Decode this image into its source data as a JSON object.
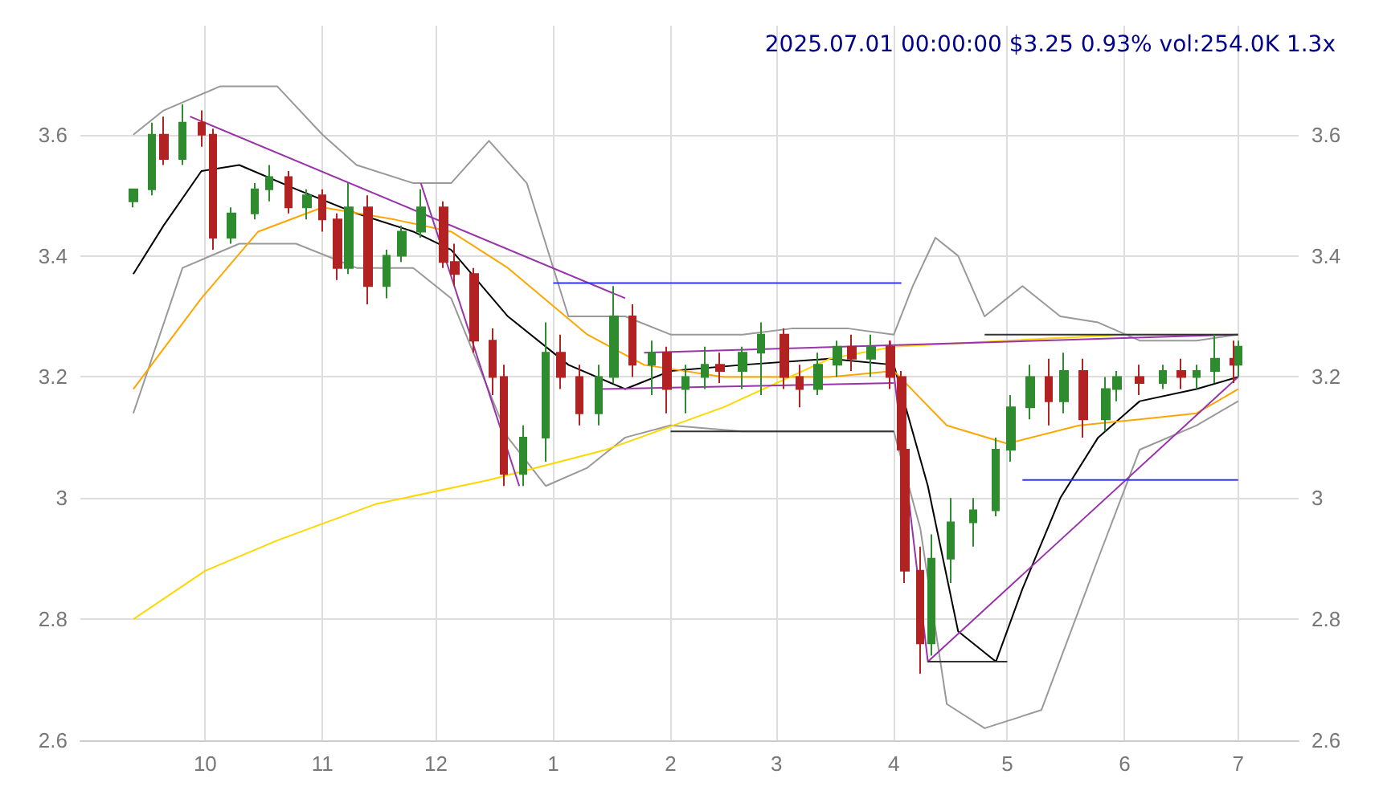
{
  "chart_data": {
    "type": "candlestick",
    "title": "2025.07.01 00:00:00 $3.25 0.93% vol:254.0K 1.3x",
    "xlim": [
      "2024-08-29",
      "2025-07-17"
    ],
    "xticks": [
      {
        "value": "2024-10-01",
        "label": "10"
      },
      {
        "value": "2024-11-01",
        "label": "11"
      },
      {
        "value": "2024-12-01",
        "label": "12"
      },
      {
        "value": "2025-01-01",
        "label": "1"
      },
      {
        "value": "2025-02-01",
        "label": "2"
      },
      {
        "value": "2025-03-01",
        "label": "3"
      },
      {
        "value": "2025-04-01",
        "label": "4"
      },
      {
        "value": "2025-05-01",
        "label": "5"
      },
      {
        "value": "2025-06-01",
        "label": "6"
      },
      {
        "value": "2025-07-01",
        "label": "7"
      }
    ],
    "ylim": [
      2.6,
      3.78
    ],
    "yticks": [
      2.6,
      2.8,
      3.0,
      3.2,
      3.4,
      3.6
    ],
    "y2lim": [
      2.6,
      3.78
    ],
    "y2ticks": [
      2.6,
      2.8,
      3.0,
      3.2,
      3.4,
      3.6
    ],
    "grid": true,
    "colors": [
      "#2e8b2e",
      "#2e8b2e",
      "#b22222",
      "#2e8b2e",
      "#b22222",
      "#b22222",
      "#2e8b2e",
      "#2e8b2e",
      "#2e8b2e",
      "#b22222",
      "#2e8b2e",
      "#b22222",
      "#b22222",
      "#2e8b2e",
      "#b22222",
      "#2e8b2e",
      "#2e8b2e",
      "#2e8b2e",
      "#b22222",
      "#b22222",
      "#b22222",
      "#b22222",
      "#b22222",
      "#2e8b2e",
      "#2e8b2e",
      "#b22222",
      "#b22222",
      "#2e8b2e",
      "#2e8b2e",
      "#b22222",
      "#2e8b2e",
      "#b22222",
      "#2e8b2e",
      "#2e8b2e",
      "#b22222",
      "#2e8b2e",
      "#2e8b2e",
      "#b22222",
      "#b22222",
      "#2e8b2e",
      "#2e8b2e",
      "#b22222",
      "#2e8b2e",
      "#b22222",
      "#b22222",
      "#b22222",
      "#b22222",
      "#2e8b2e",
      "#2e8b2e",
      "#2e8b2e",
      "#2e8b2e",
      "#2e8b2e",
      "#2e8b2e",
      "#b22222",
      "#2e8b2e",
      "#b22222",
      "#2e8b2e",
      "#2e8b2e",
      "#b22222",
      "#2e8b2e",
      "#b22222",
      "#2e8b2e",
      "#2e8b2e",
      "#b22222",
      "#2e8b2e"
    ],
    "x": [
      "2024-09-12",
      "2024-09-17",
      "2024-09-20",
      "2024-09-25",
      "2024-09-30",
      "2024-10-03",
      "2024-10-08",
      "2024-10-14",
      "2024-10-18",
      "2024-10-23",
      "2024-10-28",
      "2024-11-01",
      "2024-11-05",
      "2024-11-08",
      "2024-11-13",
      "2024-11-18",
      "2024-11-22",
      "2024-11-27",
      "2024-12-03",
      "2024-12-06",
      "2024-12-11",
      "2024-12-16",
      "2024-12-19",
      "2024-12-24",
      "2024-12-30",
      "2025-01-03",
      "2025-01-08",
      "2025-01-13",
      "2025-01-17",
      "2025-01-22",
      "2025-01-27",
      "2025-01-31",
      "2025-02-05",
      "2025-02-10",
      "2025-02-14",
      "2025-02-20",
      "2025-02-25",
      "2025-03-03",
      "2025-03-07",
      "2025-03-12",
      "2025-03-17",
      "2025-03-21",
      "2025-03-26",
      "2025-03-31",
      "2025-04-03",
      "2025-04-04",
      "2025-04-08",
      "2025-04-11",
      "2025-04-16",
      "2025-04-22",
      "2025-04-28",
      "2025-05-02",
      "2025-05-07",
      "2025-05-12",
      "2025-05-16",
      "2025-05-21",
      "2025-05-27",
      "2025-05-30",
      "2025-06-05",
      "2025-06-11",
      "2025-06-16",
      "2025-06-20",
      "2025-06-25",
      "2025-06-30",
      "2025-07-01"
    ],
    "ohlc": [
      [
        3.49,
        3.51,
        3.48,
        3.51
      ],
      [
        3.51,
        3.62,
        3.5,
        3.6
      ],
      [
        3.6,
        3.63,
        3.55,
        3.56
      ],
      [
        3.56,
        3.65,
        3.55,
        3.62
      ],
      [
        3.62,
        3.64,
        3.58,
        3.6
      ],
      [
        3.6,
        3.61,
        3.41,
        3.43
      ],
      [
        3.43,
        3.48,
        3.42,
        3.47
      ],
      [
        3.47,
        3.52,
        3.46,
        3.51
      ],
      [
        3.51,
        3.55,
        3.49,
        3.53
      ],
      [
        3.53,
        3.54,
        3.47,
        3.48
      ],
      [
        3.48,
        3.51,
        3.46,
        3.5
      ],
      [
        3.5,
        3.51,
        3.44,
        3.46
      ],
      [
        3.46,
        3.47,
        3.36,
        3.38
      ],
      [
        3.38,
        3.52,
        3.37,
        3.48
      ],
      [
        3.48,
        3.5,
        3.32,
        3.35
      ],
      [
        3.35,
        3.41,
        3.33,
        3.4
      ],
      [
        3.4,
        3.45,
        3.39,
        3.44
      ],
      [
        3.44,
        3.51,
        3.43,
        3.48
      ],
      [
        3.48,
        3.49,
        3.38,
        3.39
      ],
      [
        3.39,
        3.42,
        3.35,
        3.37
      ],
      [
        3.37,
        3.38,
        3.24,
        3.26
      ],
      [
        3.26,
        3.28,
        3.17,
        3.2
      ],
      [
        3.2,
        3.22,
        3.02,
        3.04
      ],
      [
        3.04,
        3.12,
        3.02,
        3.1
      ],
      [
        3.1,
        3.29,
        3.06,
        3.24
      ],
      [
        3.24,
        3.27,
        3.18,
        3.2
      ],
      [
        3.2,
        3.22,
        3.12,
        3.14
      ],
      [
        3.14,
        3.22,
        3.12,
        3.2
      ],
      [
        3.2,
        3.35,
        3.19,
        3.3
      ],
      [
        3.3,
        3.32,
        3.2,
        3.22
      ],
      [
        3.22,
        3.26,
        3.17,
        3.24
      ],
      [
        3.24,
        3.25,
        3.14,
        3.18
      ],
      [
        3.18,
        3.22,
        3.14,
        3.2
      ],
      [
        3.2,
        3.25,
        3.18,
        3.22
      ],
      [
        3.22,
        3.24,
        3.19,
        3.21
      ],
      [
        3.21,
        3.25,
        3.18,
        3.24
      ],
      [
        3.24,
        3.29,
        3.17,
        3.27
      ],
      [
        3.27,
        3.28,
        3.18,
        3.2
      ],
      [
        3.2,
        3.22,
        3.15,
        3.18
      ],
      [
        3.18,
        3.24,
        3.17,
        3.22
      ],
      [
        3.22,
        3.26,
        3.2,
        3.25
      ],
      [
        3.25,
        3.27,
        3.21,
        3.23
      ],
      [
        3.23,
        3.27,
        3.2,
        3.25
      ],
      [
        3.25,
        3.26,
        3.18,
        3.2
      ],
      [
        3.2,
        3.21,
        3.05,
        3.08
      ],
      [
        3.08,
        3.1,
        2.86,
        2.88
      ],
      [
        2.88,
        2.92,
        2.71,
        2.76
      ],
      [
        2.76,
        2.94,
        2.74,
        2.9
      ],
      [
        2.9,
        3.0,
        2.86,
        2.96
      ],
      [
        2.96,
        3.0,
        2.92,
        2.98
      ],
      [
        2.98,
        3.1,
        2.97,
        3.08
      ],
      [
        3.08,
        3.17,
        3.06,
        3.15
      ],
      [
        3.15,
        3.22,
        3.13,
        3.2
      ],
      [
        3.2,
        3.23,
        3.12,
        3.16
      ],
      [
        3.16,
        3.24,
        3.14,
        3.21
      ],
      [
        3.21,
        3.23,
        3.1,
        3.13
      ],
      [
        3.13,
        3.2,
        3.11,
        3.18
      ],
      [
        3.18,
        3.21,
        3.16,
        3.2
      ],
      [
        3.2,
        3.22,
        3.17,
        3.19
      ],
      [
        3.19,
        3.22,
        3.18,
        3.21
      ],
      [
        3.21,
        3.23,
        3.18,
        3.2
      ],
      [
        3.2,
        3.22,
        3.18,
        3.21
      ],
      [
        3.21,
        3.27,
        3.19,
        3.23
      ],
      [
        3.23,
        3.26,
        3.19,
        3.22
      ],
      [
        3.22,
        3.26,
        3.2,
        3.25
      ]
    ],
    "series": [
      {
        "type": "line",
        "color": "#000000",
        "x": [
          "2024-09-12",
          "2024-09-20",
          "2024-09-30",
          "2024-10-10",
          "2024-10-25",
          "2024-11-10",
          "2024-11-25",
          "2024-12-05",
          "2024-12-20",
          "2025-01-05",
          "2025-01-20",
          "2025-02-01",
          "2025-02-20",
          "2025-03-15",
          "2025-04-01",
          "2025-04-10",
          "2025-04-18",
          "2025-04-28",
          "2025-05-05",
          "2025-05-15",
          "2025-05-25",
          "2025-06-05",
          "2025-06-20",
          "2025-07-01"
        ],
        "values": [
          3.37,
          3.45,
          3.54,
          3.55,
          3.51,
          3.47,
          3.44,
          3.41,
          3.3,
          3.22,
          3.18,
          3.21,
          3.22,
          3.23,
          3.22,
          3.02,
          2.78,
          2.73,
          2.85,
          3.0,
          3.1,
          3.16,
          3.18,
          3.2
        ]
      },
      {
        "type": "line",
        "color": "#999999",
        "x": [
          "2024-09-12",
          "2024-09-20",
          "2024-10-05",
          "2024-10-20",
          "2024-11-01",
          "2024-11-10",
          "2024-11-25",
          "2024-12-05",
          "2024-12-15",
          "2024-12-25",
          "2025-01-05",
          "2025-01-20",
          "2025-02-01",
          "2025-02-20",
          "2025-03-05",
          "2025-03-20",
          "2025-04-01",
          "2025-04-06",
          "2025-04-12",
          "2025-04-18",
          "2025-04-25",
          "2025-05-05",
          "2025-05-15",
          "2025-05-25",
          "2025-06-05",
          "2025-06-20",
          "2025-07-01"
        ],
        "values": [
          3.6,
          3.64,
          3.68,
          3.68,
          3.6,
          3.55,
          3.52,
          3.52,
          3.59,
          3.52,
          3.3,
          3.3,
          3.27,
          3.27,
          3.28,
          3.28,
          3.27,
          3.35,
          3.43,
          3.4,
          3.3,
          3.35,
          3.3,
          3.29,
          3.26,
          3.26,
          3.27
        ]
      },
      {
        "type": "line",
        "color": "#999999",
        "x": [
          "2024-09-12",
          "2024-09-25",
          "2024-10-10",
          "2024-10-25",
          "2024-11-10",
          "2024-11-25",
          "2024-12-05",
          "2024-12-20",
          "2024-12-30",
          "2025-01-10",
          "2025-01-20",
          "2025-02-01",
          "2025-02-20",
          "2025-03-15",
          "2025-04-01",
          "2025-04-08",
          "2025-04-15",
          "2025-04-25",
          "2025-05-10",
          "2025-05-25",
          "2025-06-05",
          "2025-06-20",
          "2025-07-01"
        ],
        "values": [
          3.14,
          3.38,
          3.42,
          3.42,
          3.38,
          3.38,
          3.33,
          3.1,
          3.02,
          3.05,
          3.1,
          3.12,
          3.11,
          3.11,
          3.11,
          2.95,
          2.66,
          2.62,
          2.65,
          2.9,
          3.08,
          3.12,
          3.16
        ]
      },
      {
        "type": "line",
        "color": "#ffa500",
        "x": [
          "2024-09-12",
          "2024-09-30",
          "2024-10-15",
          "2024-11-01",
          "2024-11-20",
          "2024-12-05",
          "2024-12-20",
          "2025-01-10",
          "2025-01-25",
          "2025-02-15",
          "2025-03-15",
          "2025-04-01",
          "2025-04-15",
          "2025-05-01",
          "2025-05-20",
          "2025-06-05",
          "2025-06-20",
          "2025-07-01"
        ],
        "values": [
          3.18,
          3.33,
          3.44,
          3.48,
          3.46,
          3.44,
          3.38,
          3.27,
          3.22,
          3.2,
          3.2,
          3.21,
          3.12,
          3.09,
          3.12,
          3.13,
          3.14,
          3.18
        ]
      },
      {
        "type": "line",
        "color": "#ffd700",
        "x": [
          "2024-09-12",
          "2024-10-01",
          "2024-10-20",
          "2024-11-15",
          "2024-12-15",
          "2025-01-15",
          "2025-02-15",
          "2025-03-15",
          "2025-04-01",
          "2025-05-01",
          "2025-06-01",
          "2025-07-01"
        ],
        "values": [
          2.8,
          2.88,
          2.93,
          2.99,
          3.03,
          3.08,
          3.15,
          3.23,
          3.25,
          3.26,
          3.27,
          3.27
        ]
      },
      {
        "type": "line",
        "color": "#9933aa",
        "x": [
          "2024-09-27",
          "2025-01-20"
        ],
        "values": [
          3.63,
          3.33
        ]
      },
      {
        "type": "line",
        "color": "#9933aa",
        "x": [
          "2024-11-27",
          "2024-12-23"
        ],
        "values": [
          3.52,
          3.02
        ]
      },
      {
        "type": "line",
        "color": "#9933aa",
        "x": [
          "2025-01-13",
          "2025-04-01"
        ],
        "values": [
          3.18,
          3.19
        ]
      },
      {
        "type": "line",
        "color": "#9933aa",
        "x": [
          "2025-01-25",
          "2025-07-01"
        ],
        "values": [
          3.24,
          3.27
        ]
      },
      {
        "type": "line",
        "color": "#9933aa",
        "x": [
          "2025-03-31",
          "2025-04-10",
          "2025-07-01"
        ],
        "values": [
          3.26,
          2.73,
          3.2
        ]
      },
      {
        "type": "line",
        "color": "#3333ff",
        "x": [
          "2025-01-01",
          "2025-04-03"
        ],
        "values": [
          3.355,
          3.355
        ]
      },
      {
        "type": "line",
        "color": "#3333ff",
        "x": [
          "2025-05-05",
          "2025-07-01"
        ],
        "values": [
          3.03,
          3.03
        ]
      },
      {
        "type": "line",
        "color": "#333333",
        "x": [
          "2025-02-01",
          "2025-04-01"
        ],
        "values": [
          3.11,
          3.11
        ]
      },
      {
        "type": "line",
        "color": "#333333",
        "x": [
          "2025-04-10",
          "2025-05-01"
        ],
        "values": [
          2.73,
          2.73
        ]
      },
      {
        "type": "line",
        "color": "#333333",
        "x": [
          "2025-04-25",
          "2025-07-01"
        ],
        "values": [
          3.27,
          3.27
        ]
      }
    ]
  }
}
